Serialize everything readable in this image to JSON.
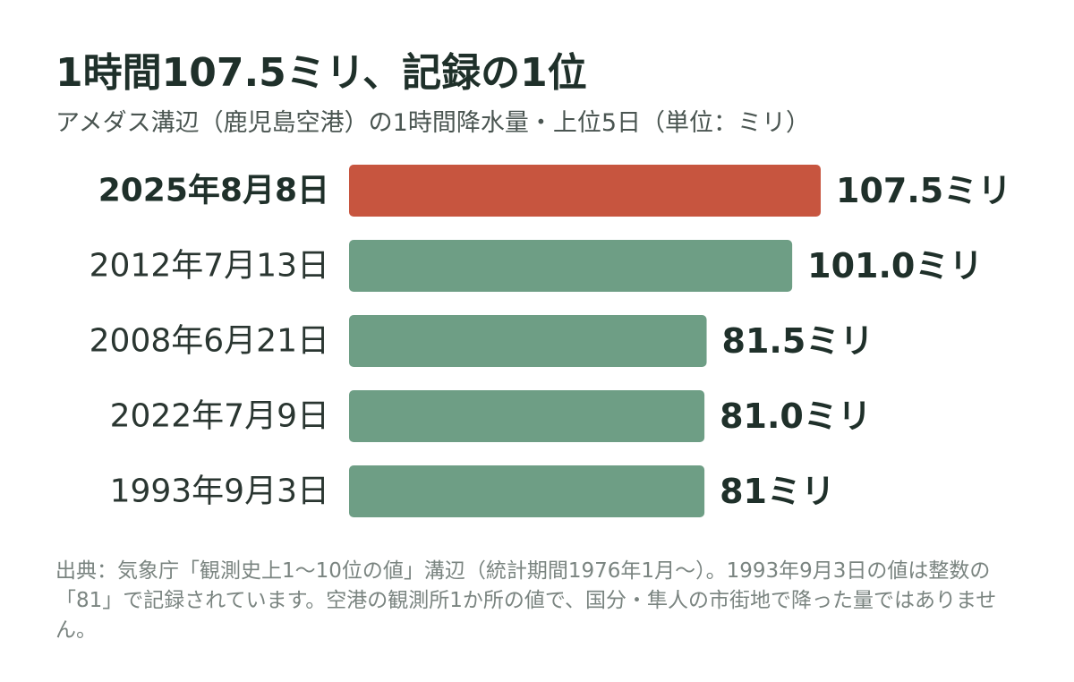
{
  "title": "1時間107.5ミリ、記録の1位",
  "subtitle": "アメダス溝辺（鹿児島空港）の1時間降水量・上位5日（単位：ミリ）",
  "footnote": "出典：気象庁「観測史上1～10位の値」溝辺（統計期間1976年1月～）。1993年9月3日の値は整数の「81」で記録されています。空港の観測所1か所の値で、国分・隼人の市街地で降った量ではありません。",
  "colors": {
    "highlight": "#c7553f",
    "bar": "#6e9e85"
  },
  "chart_data": {
    "type": "bar",
    "orientation": "horizontal",
    "title": "1時間107.5ミリ、記録の1位",
    "subtitle": "アメダス溝辺（鹿児島空港）の1時間降水量・上位5日（単位：ミリ）",
    "categories": [
      "2025年8月8日",
      "2012年7月13日",
      "2008年6月21日",
      "2022年7月9日",
      "1993年9月3日"
    ],
    "values": [
      107.5,
      101.0,
      81.5,
      81.0,
      81
    ],
    "value_labels": [
      "107.5ミリ",
      "101.0ミリ",
      "81.5ミリ",
      "81.0ミリ",
      "81ミリ"
    ],
    "highlight_index": 0,
    "grid": false,
    "legend": "none"
  }
}
